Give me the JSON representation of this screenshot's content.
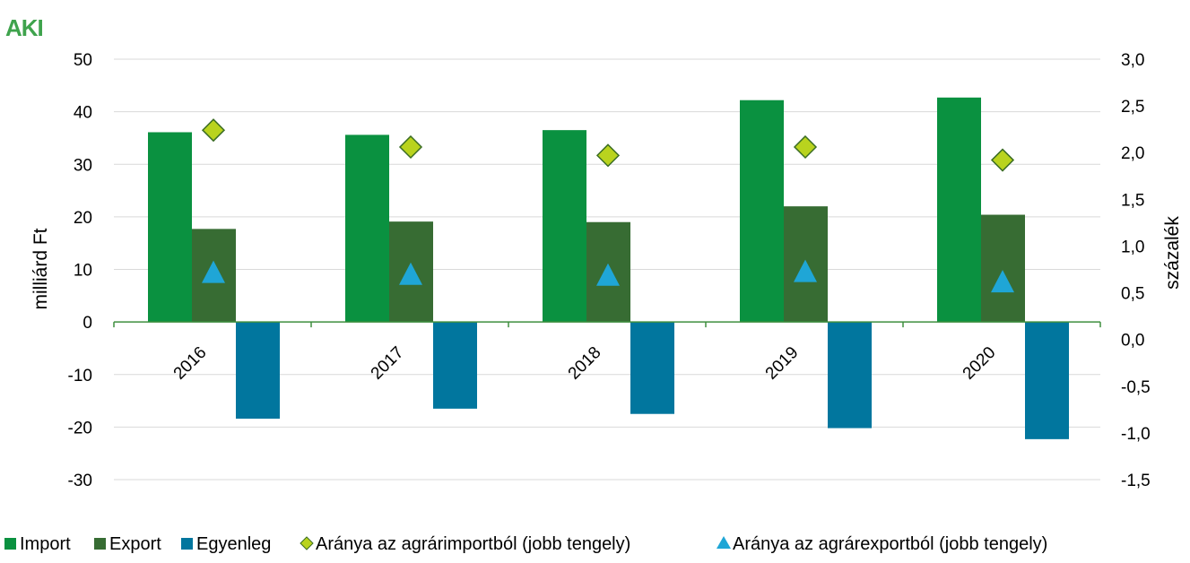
{
  "logo": {
    "text": "AKI"
  },
  "colors": {
    "import": "#0a9140",
    "export": "#376c33",
    "balance": "#01769e",
    "import_share": "#b9d31e",
    "export_share": "#1fa6d6",
    "axis": "#3f8f3f",
    "grid": "#d9d9d9"
  },
  "chart_data": {
    "type": "bar",
    "categories": [
      "2016",
      "2017",
      "2018",
      "2019",
      "2020"
    ],
    "series": [
      {
        "name": "Import",
        "type": "bar",
        "axis": "left",
        "values": [
          36.1,
          35.6,
          36.5,
          42.2,
          42.7
        ]
      },
      {
        "name": "Export",
        "type": "bar",
        "axis": "left",
        "values": [
          17.7,
          19.1,
          19.0,
          22.0,
          20.4
        ]
      },
      {
        "name": "Egyenleg",
        "type": "bar",
        "axis": "left",
        "values": [
          -18.4,
          -16.5,
          -17.5,
          -20.2,
          -22.3
        ]
      },
      {
        "name": "Aránya az agrárimportból (jobb tengely)",
        "type": "scatter",
        "marker": "diamond",
        "axis": "right",
        "values": [
          2.24,
          2.06,
          1.97,
          2.06,
          1.92
        ]
      },
      {
        "name": "Aránya az agrárexportból (jobb tengely)",
        "type": "scatter",
        "marker": "triangle",
        "axis": "right",
        "values": [
          0.71,
          0.69,
          0.68,
          0.72,
          0.61
        ]
      }
    ],
    "ylabel": "milliárd Ft",
    "y2label": "százalék",
    "ylim": [
      -30,
      50
    ],
    "y2lim": [
      -1.5,
      3.0
    ],
    "yticks": [
      "50",
      "40",
      "30",
      "20",
      "10",
      "0",
      "-10",
      "-20",
      "-30"
    ],
    "y2ticks": [
      "3,0",
      "2,5",
      "2,0",
      "1,5",
      "1,0",
      "0,5",
      "0,0",
      "-0,5",
      "-1,0",
      "-1,5"
    ],
    "grid": true,
    "legend_position": "bottom"
  }
}
